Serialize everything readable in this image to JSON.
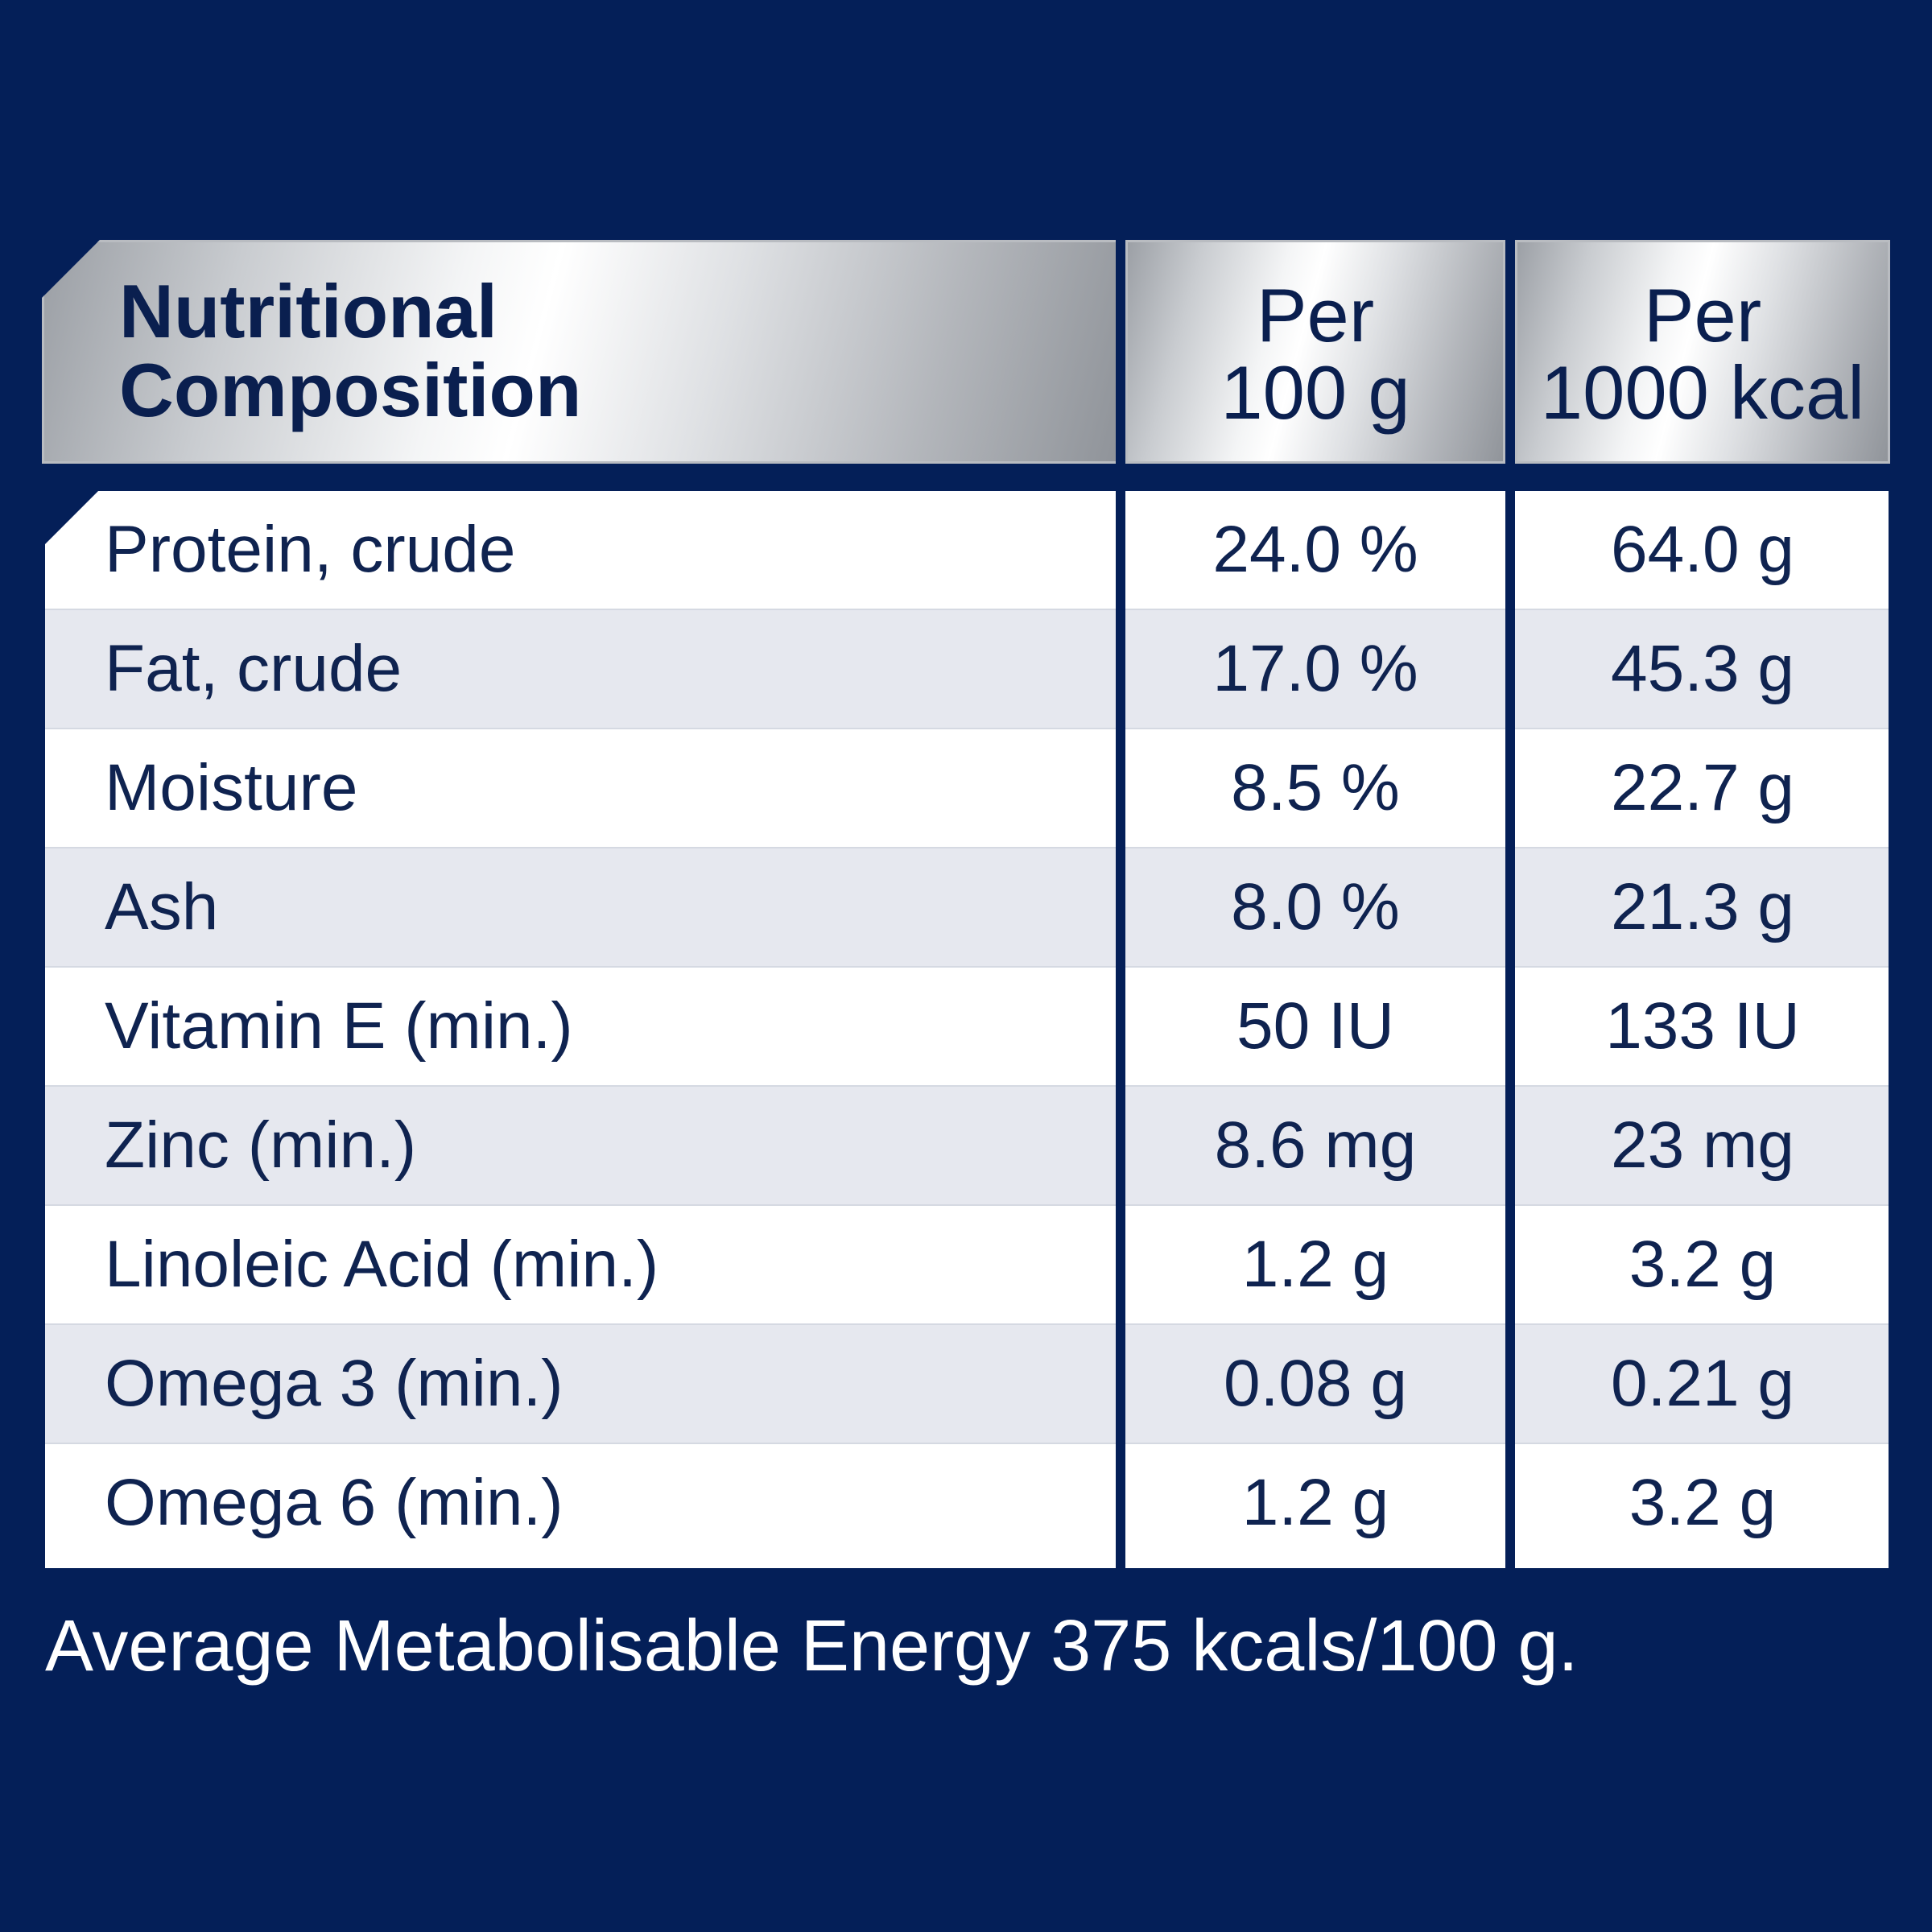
{
  "header": {
    "title_line1": "Nutritional",
    "title_line2": "Composition",
    "col1_line1": "Per",
    "col1_line2": "100 g",
    "col2_line1": "Per",
    "col2_line2": "1000 kcal"
  },
  "rows": [
    {
      "label": "Protein, crude",
      "per100g": "24.0 %",
      "per1000kcal": "64.0 g"
    },
    {
      "label": "Fat, crude",
      "per100g": "17.0 %",
      "per1000kcal": "45.3 g"
    },
    {
      "label": "Moisture",
      "per100g": "8.5 %",
      "per1000kcal": "22.7 g"
    },
    {
      "label": "Ash",
      "per100g": "8.0 %",
      "per1000kcal": "21.3 g"
    },
    {
      "label": "Vitamin E (min.)",
      "per100g": "50 IU",
      "per1000kcal": "133 IU"
    },
    {
      "label": "Zinc (min.)",
      "per100g": "8.6 mg",
      "per1000kcal": "23 mg"
    },
    {
      "label": "Linoleic Acid (min.)",
      "per100g": "1.2 g",
      "per1000kcal": "3.2 g"
    },
    {
      "label": "Omega 3 (min.)",
      "per100g": "0.08 g",
      "per1000kcal": "0.21 g"
    },
    {
      "label": "Omega 6 (min.)",
      "per100g": "1.2 g",
      "per1000kcal": "3.2 g"
    }
  ],
  "footer": "Average Metabolisable Energy 375 kcals/100 g.",
  "colors": {
    "background": "#041f58",
    "text": "#0f2350",
    "row_alt": "#e6e8ef"
  }
}
